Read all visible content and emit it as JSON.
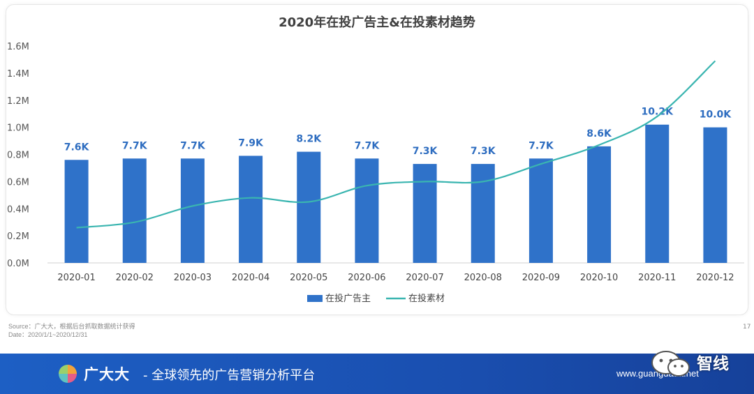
{
  "chart_data": {
    "type": "bar+line",
    "title": "2020年在投广告主&在投素材趋势",
    "categories": [
      "2020-01",
      "2020-02",
      "2020-03",
      "2020-04",
      "2020-05",
      "2020-06",
      "2020-07",
      "2020-08",
      "2020-09",
      "2020-10",
      "2020-11",
      "2020-12"
    ],
    "series": [
      {
        "name": "在投广告主",
        "type": "bar",
        "color": "#2f72c9",
        "values": [
          7600,
          7700,
          7700,
          7900,
          8200,
          7700,
          7300,
          7300,
          7700,
          8600,
          10200,
          10000
        ],
        "labels": [
          "7.6K",
          "7.7K",
          "7.7K",
          "7.9K",
          "8.2K",
          "7.7K",
          "7.3K",
          "7.3K",
          "7.7K",
          "8.6K",
          "10.2K",
          "10.0K"
        ],
        "label_color": "#2e6dc0"
      },
      {
        "name": "在投素材",
        "type": "line",
        "color": "#3ab5b0",
        "values": [
          260000,
          300000,
          420000,
          480000,
          450000,
          570000,
          600000,
          600000,
          730000,
          870000,
          1080000,
          1490000
        ]
      }
    ],
    "ylim": [
      0,
      1600000
    ],
    "y_ticks": [
      "0.0M",
      "0.2M",
      "0.4M",
      "0.6M",
      "0.8M",
      "1.0M",
      "1.2M",
      "1.4M",
      "1.6M"
    ],
    "grid": false,
    "legend_position": "bottom"
  },
  "source": {
    "line1": "Source：广大大，根据后台抓取数据统计获得",
    "line2": "Date：2020/1/1~2020/12/31"
  },
  "page_number": "17",
  "footer": {
    "brand": "广大大",
    "slogan": "- 全球领先的广告营销分析平台",
    "url": "www.guangdada.net"
  },
  "watermark": {
    "text": "智线",
    "icon": "wechat-icon"
  }
}
